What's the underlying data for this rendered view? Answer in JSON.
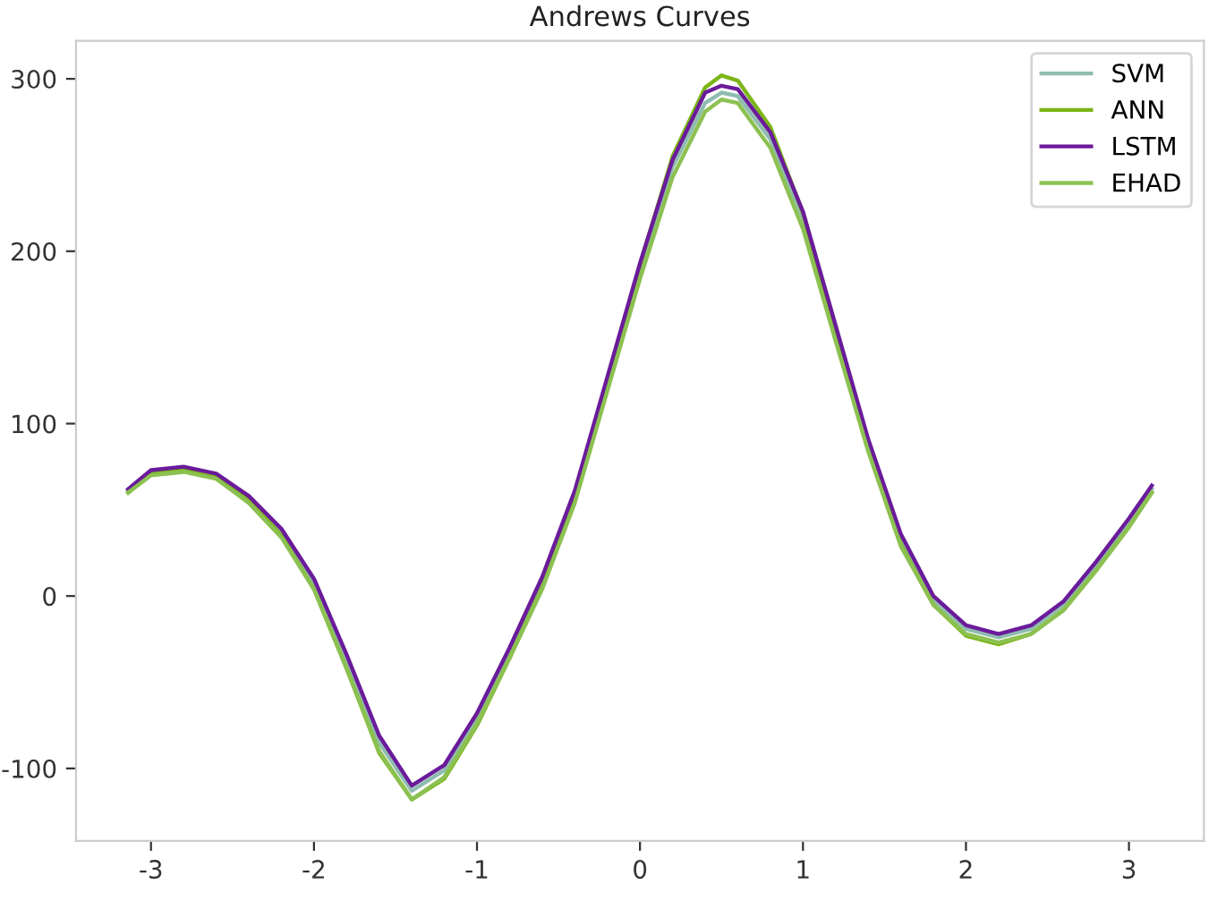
{
  "chart_data": {
    "type": "line",
    "title": "Andrews Curves",
    "x": [
      -3.14,
      -3.0,
      -2.8,
      -2.6,
      -2.4,
      -2.2,
      -2.0,
      -1.8,
      -1.6,
      -1.4,
      -1.2,
      -1.0,
      -0.8,
      -0.6,
      -0.4,
      -0.2,
      0,
      0.2,
      0.4,
      0.5,
      0.6,
      0.8,
      1.0,
      1.2,
      1.4,
      1.6,
      1.8,
      2.0,
      2.2,
      2.4,
      2.6,
      2.8,
      3.0,
      3.14
    ],
    "series": [
      {
        "name": "SVM",
        "color": "#8fbcb0",
        "values": [
          61,
          71,
          74,
          70,
          57,
          38,
          8,
          -37,
          -85,
          -113,
          -101,
          -71,
          -33,
          8,
          59,
          124,
          189,
          249,
          286,
          292,
          290,
          265,
          219,
          154,
          89,
          33,
          -2,
          -19,
          -24,
          -19,
          -5,
          18,
          43,
          62
        ]
      },
      {
        "name": "ANN",
        "color": "#7cb518",
        "values": [
          60,
          71,
          73,
          69,
          56,
          35,
          4,
          -42,
          -91,
          -118,
          -106,
          -75,
          -36,
          5,
          57,
          124,
          192,
          255,
          295,
          302,
          299,
          272,
          222,
          154,
          87,
          30,
          -5,
          -23,
          -28,
          -22,
          -8,
          15,
          40,
          60
        ]
      },
      {
        "name": "LSTM",
        "color": "#6a1b9a",
        "values": [
          62,
          73,
          75,
          71,
          58,
          39,
          10,
          -34,
          -81,
          -110,
          -98,
          -68,
          -30,
          11,
          61,
          127,
          193,
          253,
          292,
          296,
          294,
          269,
          223,
          157,
          91,
          36,
          0,
          -17,
          -22,
          -17,
          -3,
          20,
          45,
          64
        ]
      },
      {
        "name": "EHAD",
        "color": "#8cc152",
        "values": [
          60,
          70,
          72,
          68,
          54,
          34,
          4,
          -42,
          -90,
          -118,
          -105,
          -74,
          -36,
          4,
          54,
          119,
          184,
          243,
          281,
          288,
          286,
          260,
          213,
          148,
          84,
          29,
          -5,
          -22,
          -27,
          -22,
          -8,
          15,
          40,
          60
        ]
      }
    ],
    "xlim": [
      -3.46,
      3.46
    ],
    "ylim": [
      -142,
      322
    ],
    "xticks": [
      -3,
      -2,
      -1,
      0,
      1,
      2,
      3
    ],
    "yticks": [
      -100,
      0,
      100,
      200,
      300
    ],
    "grid": false,
    "legend": "top right"
  }
}
